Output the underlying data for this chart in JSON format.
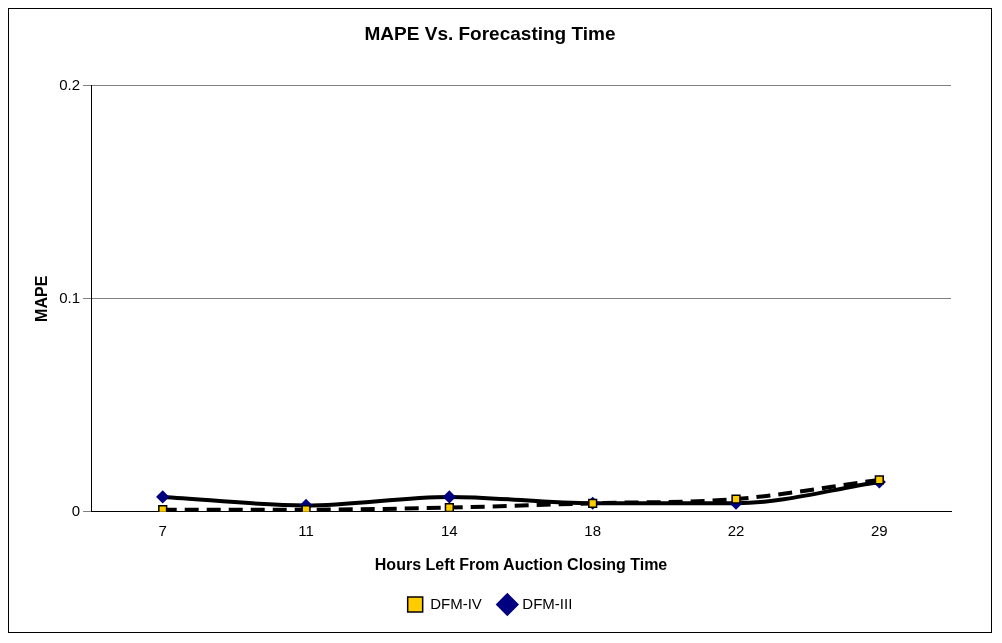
{
  "chart_data": {
    "type": "line",
    "title": "MAPE Vs. Forecasting Time",
    "xlabel": "Hours Left From Auction Closing Time",
    "ylabel": "MAPE",
    "categories": [
      "7",
      "11",
      "14",
      "18",
      "22",
      "29"
    ],
    "series": [
      {
        "name": "DFM-III",
        "color": "#000080",
        "marker": "diamond",
        "line_style": "solid",
        "values": [
          0.007,
          0.003,
          0.007,
          0.004,
          0.004,
          0.014
        ]
      },
      {
        "name": "DFM-IV",
        "color": "#ffcc00",
        "marker": "square",
        "line_style": "dashed",
        "values": [
          0.001,
          0.001,
          0.002,
          0.004,
          0.006,
          0.015
        ]
      }
    ],
    "ylim": [
      0,
      0.2
    ],
    "yticks": [
      0,
      0.1,
      0.2
    ],
    "grid": "y",
    "legend": "bottom"
  }
}
